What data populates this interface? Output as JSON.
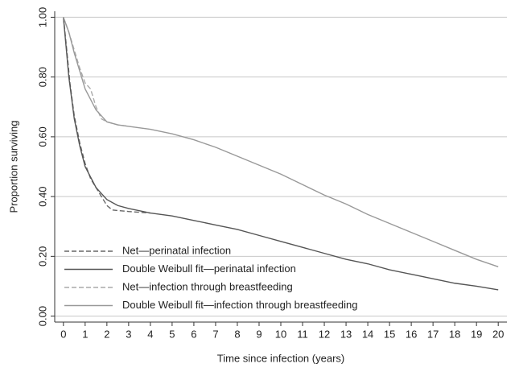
{
  "chart_data": {
    "type": "line",
    "x_label": "Time since infection (years)",
    "y_label": "Proportion surviving",
    "xlim": [
      -0.4,
      20.4
    ],
    "ylim": [
      -0.02,
      1.02
    ],
    "xticks": [
      0,
      1,
      2,
      3,
      4,
      5,
      6,
      7,
      8,
      9,
      10,
      11,
      12,
      13,
      14,
      15,
      16,
      17,
      18,
      19,
      20
    ],
    "yticks": [
      {
        "value": 0,
        "label": "0.00"
      },
      {
        "value": 0.2,
        "label": "0.20"
      },
      {
        "value": 0.4,
        "label": "0.40"
      },
      {
        "value": 0.6,
        "label": "0.60"
      },
      {
        "value": 0.8,
        "label": "0.80"
      },
      {
        "value": 1,
        "label": "1.00"
      }
    ],
    "grid": true,
    "legend": "lower left",
    "series": [
      {
        "name": "Net—perinatal infection",
        "color": "#666666",
        "style": "dashed",
        "x": [
          0,
          0.1,
          0.3,
          0.5,
          0.75,
          1,
          1.25,
          1.5,
          1.75,
          2,
          2.25,
          3,
          4
        ],
        "values": [
          1.0,
          0.93,
          0.78,
          0.67,
          0.58,
          0.51,
          0.46,
          0.43,
          0.4,
          0.37,
          0.355,
          0.35,
          0.345
        ]
      },
      {
        "name": "Double Weibull fit—perinatal infection",
        "color": "#555555",
        "style": "solid",
        "x": [
          0,
          0.25,
          0.5,
          0.75,
          1,
          1.5,
          2,
          2.5,
          3,
          4,
          5,
          6,
          7,
          8,
          9,
          10,
          11,
          12,
          13,
          14,
          15,
          16,
          17,
          18,
          19,
          20
        ],
        "values": [
          1.0,
          0.8,
          0.66,
          0.57,
          0.5,
          0.43,
          0.39,
          0.37,
          0.36,
          0.345,
          0.335,
          0.32,
          0.305,
          0.29,
          0.27,
          0.25,
          0.23,
          0.21,
          0.19,
          0.175,
          0.155,
          0.14,
          0.125,
          0.11,
          0.1,
          0.088
        ]
      },
      {
        "name": "Net—infection through breastfeeding",
        "color": "#aaaaaa",
        "style": "dashed",
        "x": [
          0,
          0.25,
          0.5,
          0.75,
          1,
          1.25,
          1.5,
          1.75,
          2,
          2.5,
          3
        ],
        "values": [
          1.0,
          0.95,
          0.89,
          0.83,
          0.78,
          0.76,
          0.7,
          0.66,
          0.65,
          0.64,
          0.635
        ]
      },
      {
        "name": "Double Weibull fit—infection through breastfeeding",
        "color": "#999999",
        "style": "solid",
        "x": [
          0,
          0.25,
          0.5,
          0.75,
          1,
          1.5,
          2,
          2.5,
          3,
          4,
          5,
          6,
          7,
          8,
          9,
          10,
          11,
          12,
          13,
          14,
          15,
          16,
          17,
          18,
          19,
          20
        ],
        "values": [
          1.0,
          0.95,
          0.88,
          0.82,
          0.76,
          0.69,
          0.65,
          0.64,
          0.635,
          0.625,
          0.61,
          0.59,
          0.565,
          0.535,
          0.505,
          0.475,
          0.44,
          0.405,
          0.375,
          0.34,
          0.31,
          0.28,
          0.25,
          0.22,
          0.19,
          0.165
        ]
      }
    ]
  }
}
